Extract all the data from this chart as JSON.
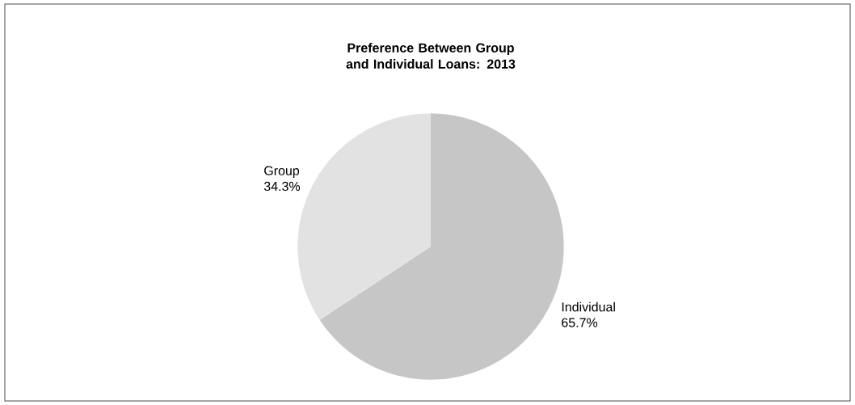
{
  "chart_data": {
    "type": "pie",
    "title": "Preference Between Group and Individual Loans: 2013",
    "categories": [
      "Individual",
      "Group"
    ],
    "values": [
      65.7,
      34.3
    ],
    "colors": [
      "#c6c6c6",
      "#e2e2e2"
    ],
    "value_labels": [
      "65.7%",
      "34.3%"
    ]
  }
}
